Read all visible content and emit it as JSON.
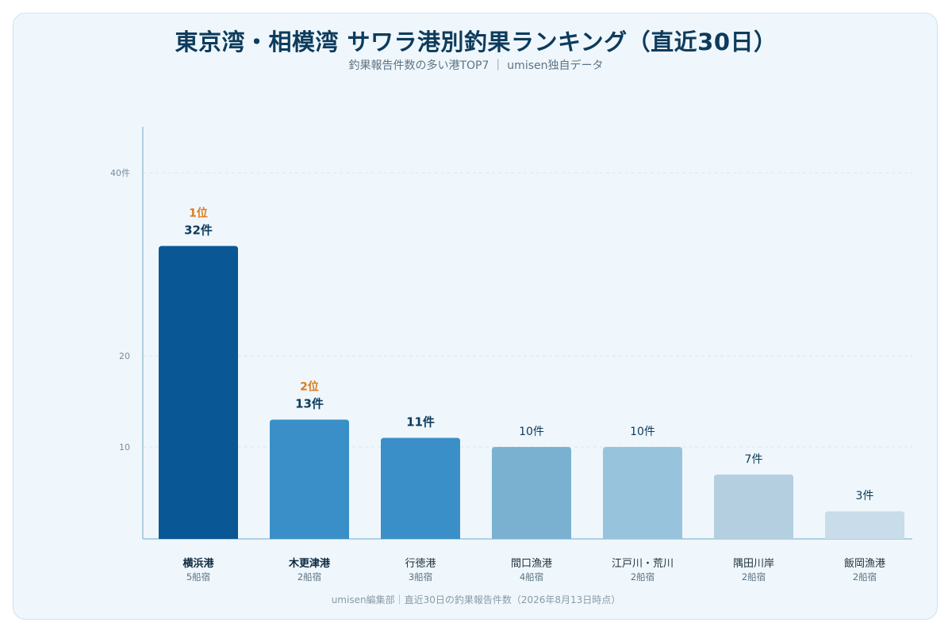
{
  "title": "東京湾・相模湾 サワラ港別釣果ランキング（直近30日）",
  "subtitle": "釣果報告件数の多い港TOP7 ｜ umisen独自データ",
  "footer": "umisen編集部｜直近30日の釣果報告件数（2026年8月13日時点）",
  "colors": {
    "background": "#eff7fc",
    "title": "#0d3b5c",
    "rank": "#e07b1a",
    "axis": "#9cc3d8",
    "grid": "#d3e8f2"
  },
  "chart_data": {
    "type": "bar",
    "categories": [
      "横浜港",
      "木更津港",
      "行徳港",
      "間口漁港",
      "江戸川・荒川",
      "隅田川岸",
      "飯岡漁港"
    ],
    "sub_labels": [
      "5船宿",
      "2船宿",
      "3船宿",
      "4船宿",
      "2船宿",
      "2船宿",
      "2船宿"
    ],
    "values": [
      32,
      13,
      11,
      10,
      10,
      7,
      3
    ],
    "value_labels": [
      "32件",
      "13件",
      "11件",
      "10件",
      "10件",
      "7件",
      "3件"
    ],
    "rank_labels": [
      "1位",
      "2位",
      "",
      "",
      "",
      "",
      ""
    ],
    "bar_colors": [
      "#0a5795",
      "#3b8fc8",
      "#3b8fc8",
      "#7ab1d1",
      "#98c3dc",
      "#b4cfe0",
      "#c8dcea"
    ],
    "y_ticks": [
      {
        "value": 10,
        "label": "10"
      },
      {
        "value": 20,
        "label": "20"
      },
      {
        "value": 40,
        "label": "40件"
      }
    ],
    "ylim": [
      0,
      45
    ],
    "grid": true,
    "legend": "none"
  }
}
